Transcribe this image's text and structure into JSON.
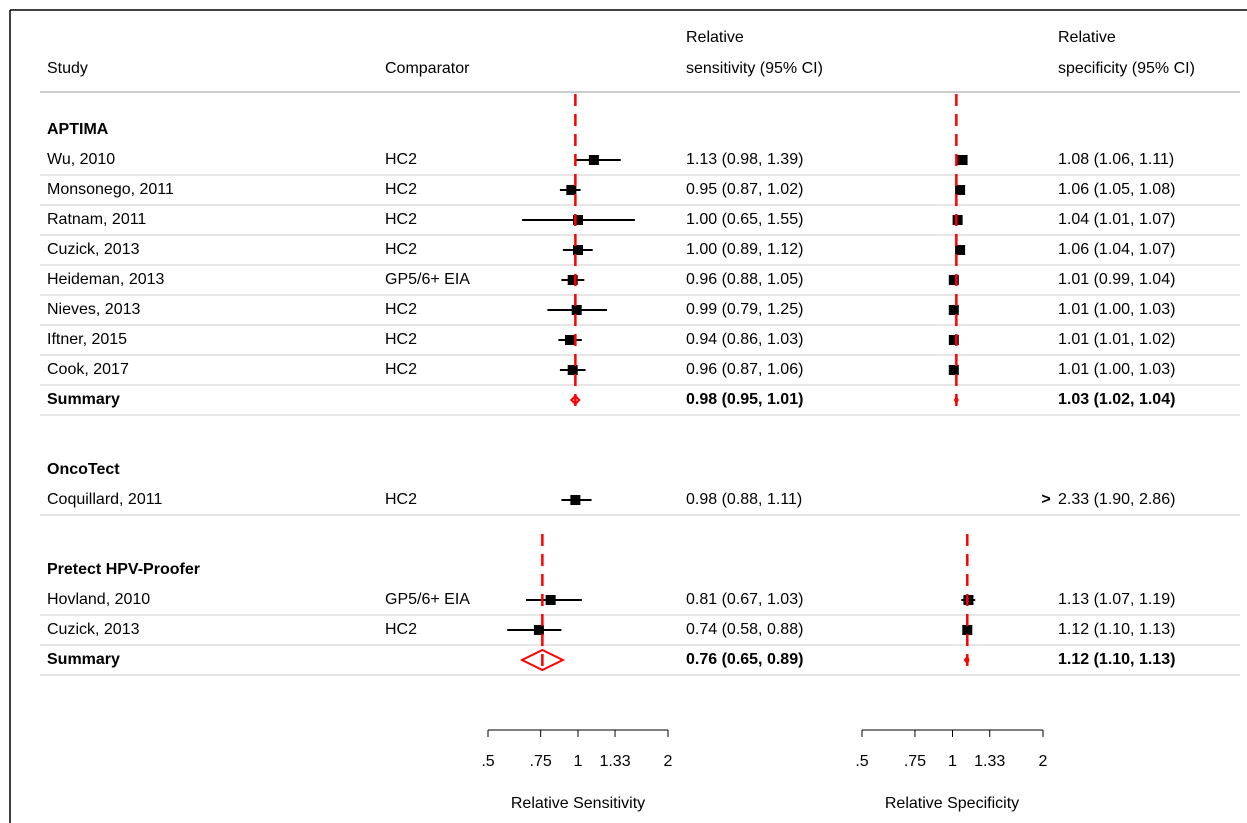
{
  "chart_data": {
    "type": "forest",
    "headers": {
      "study": "Study",
      "comparator": "Comparator",
      "sensitivity": [
        "Relative",
        "sensitivity (95% CI)"
      ],
      "specificity": [
        "Relative",
        "specificity (95% CI)"
      ]
    },
    "groups": [
      {
        "name": "APTIMA",
        "studies": [
          {
            "study": "Wu, 2010",
            "comparator": "HC2",
            "sensitivity": [
              1.13,
              0.98,
              1.39
            ],
            "sensitivity_label": "1.13 (0.98, 1.39)",
            "specificity": [
              1.08,
              1.06,
              1.11
            ],
            "specificity_label": "1.08 (1.06, 1.11)"
          },
          {
            "study": "Monsonego, 2011",
            "comparator": "HC2",
            "sensitivity": [
              0.95,
              0.87,
              1.02
            ],
            "sensitivity_label": "0.95 (0.87, 1.02)",
            "specificity": [
              1.06,
              1.05,
              1.08
            ],
            "specificity_label": "1.06 (1.05, 1.08)"
          },
          {
            "study": "Ratnam, 2011",
            "comparator": "HC2",
            "sensitivity": [
              1.0,
              0.65,
              1.55
            ],
            "sensitivity_label": "1.00 (0.65, 1.55)",
            "specificity": [
              1.04,
              1.01,
              1.07
            ],
            "specificity_label": "1.04 (1.01, 1.07)"
          },
          {
            "study": "Cuzick, 2013",
            "comparator": "HC2",
            "sensitivity": [
              1.0,
              0.89,
              1.12
            ],
            "sensitivity_label": "1.00 (0.89, 1.12)",
            "specificity": [
              1.06,
              1.04,
              1.07
            ],
            "specificity_label": "1.06 (1.04, 1.07)"
          },
          {
            "study": "Heideman, 2013",
            "comparator": "GP5/6+ EIA",
            "sensitivity": [
              0.96,
              0.88,
              1.05
            ],
            "sensitivity_label": "0.96 (0.88, 1.05)",
            "specificity": [
              1.01,
              0.99,
              1.04
            ],
            "specificity_label": "1.01 (0.99, 1.04)"
          },
          {
            "study": "Nieves, 2013",
            "comparator": "HC2",
            "sensitivity": [
              0.99,
              0.79,
              1.25
            ],
            "sensitivity_label": "0.99 (0.79, 1.25)",
            "specificity": [
              1.01,
              1.0,
              1.03
            ],
            "specificity_label": "1.01 (1.00, 1.03)"
          },
          {
            "study": "Iftner, 2015",
            "comparator": "HC2",
            "sensitivity": [
              0.94,
              0.86,
              1.03
            ],
            "sensitivity_label": "0.94 (0.86, 1.03)",
            "specificity": [
              1.01,
              1.01,
              1.02
            ],
            "specificity_label": "1.01 (1.01, 1.02)"
          },
          {
            "study": "Cook, 2017",
            "comparator": "HC2",
            "sensitivity": [
              0.96,
              0.87,
              1.06
            ],
            "sensitivity_label": "0.96 (0.87, 1.06)",
            "specificity": [
              1.01,
              1.0,
              1.03
            ],
            "specificity_label": "1.01 (1.00, 1.03)"
          }
        ],
        "summary": {
          "label": "Summary",
          "sensitivity": [
            0.98,
            0.95,
            1.01
          ],
          "sensitivity_label": "0.98 (0.95, 1.01)",
          "specificity": [
            1.03,
            1.02,
            1.04
          ],
          "specificity_label": "1.03 (1.02, 1.04)"
        }
      },
      {
        "name": "OncoTect",
        "studies": [
          {
            "study": "Coquillard, 2011",
            "comparator": "HC2",
            "sensitivity": [
              0.98,
              0.88,
              1.11
            ],
            "sensitivity_label": "0.98 (0.88, 1.11)",
            "specificity": [
              2.33,
              1.9,
              2.86
            ],
            "specificity_label": "2.33 (1.90, 2.86)"
          }
        ]
      },
      {
        "name": "Pretect HPV-Proofer",
        "studies": [
          {
            "study": "Hovland, 2010",
            "comparator": "GP5/6+ EIA",
            "sensitivity": [
              0.81,
              0.67,
              1.03
            ],
            "sensitivity_label": "0.81 (0.67, 1.03)",
            "specificity": [
              1.13,
              1.07,
              1.19
            ],
            "specificity_label": "1.13 (1.07, 1.19)"
          },
          {
            "study": "Cuzick, 2013",
            "comparator": "HC2",
            "sensitivity": [
              0.74,
              0.58,
              0.88
            ],
            "sensitivity_label": "0.74 (0.58, 0.88)",
            "specificity": [
              1.12,
              1.1,
              1.13
            ],
            "specificity_label": "1.12 (1.10, 1.13)"
          }
        ],
        "summary": {
          "label": "Summary",
          "sensitivity": [
            0.76,
            0.65,
            0.89
          ],
          "sensitivity_label": "0.76 (0.65, 0.89)",
          "specificity": [
            1.12,
            1.1,
            1.13
          ],
          "specificity_label": "1.12 (1.10, 1.13)"
        }
      }
    ],
    "x_log_scale": true,
    "xlim": [
      0.5,
      2
    ],
    "xticks": [
      {
        "value": 0.5,
        "label": ".5"
      },
      {
        "value": 0.75,
        "label": ".75"
      },
      1,
      1.33,
      2
    ],
    "xlabel_sensitivity": "Relative Sensitivity",
    "xlabel_specificity": "Relative Specificity",
    "marker_color": "#000000",
    "summary_color": "#ff0000"
  }
}
